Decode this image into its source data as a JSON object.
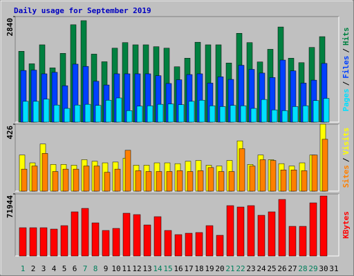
{
  "title": "Daily usage for September 2019",
  "label_separator": "/",
  "categories": [
    "1",
    "2",
    "3",
    "4",
    "5",
    "6",
    "7",
    "8",
    "9",
    "10",
    "11",
    "12",
    "13",
    "14",
    "15",
    "16",
    "17",
    "18",
    "19",
    "20",
    "21",
    "22",
    "23",
    "24",
    "25",
    "26",
    "27",
    "28",
    "29",
    "30",
    "31"
  ],
  "label_colors": [
    "#00805c",
    "#000000",
    "#000000",
    "#000000",
    "#000000",
    "#000000",
    "#00805c",
    "#00805c",
    "#000000",
    "#000000",
    "#000000",
    "#000000",
    "#000000",
    "#00805c",
    "#00805c",
    "#000000",
    "#000000",
    "#000000",
    "#000000",
    "#000000",
    "#00805c",
    "#00805c",
    "#000000",
    "#000000",
    "#000000",
    "#000000",
    "#000000",
    "#00805c",
    "#00805c",
    "#000000",
    "#000000"
  ],
  "chart_data": [
    {
      "type": "bar",
      "ylim": [
        0,
        2840
      ],
      "yticks": [
        2840
      ],
      "series": [
        {
          "name": "Hits",
          "color": "#008040",
          "values": [
            1906,
            1570,
            2080,
            1460,
            1850,
            2620,
            2730,
            1830,
            1625,
            1990,
            2140,
            2080,
            2080,
            2030,
            1990,
            1490,
            1720,
            2150,
            2080,
            2080,
            1590,
            2390,
            2140,
            1620,
            1960,
            2560,
            1720,
            1600,
            2010,
            2300,
            null
          ]
        },
        {
          "name": "Files",
          "color": "#0040ff",
          "values": [
            1390,
            1400,
            1300,
            1340,
            980,
            1560,
            1500,
            1100,
            1000,
            1300,
            1300,
            1300,
            1300,
            1250,
            1040,
            1140,
            1280,
            1300,
            1050,
            1220,
            1150,
            1530,
            1420,
            1320,
            1200,
            1670,
            1380,
            1050,
            1130,
            1580,
            null
          ]
        },
        {
          "name": "Pages",
          "color": "#00e0ff",
          "values": [
            560,
            560,
            620,
            460,
            370,
            460,
            480,
            450,
            590,
            650,
            310,
            430,
            440,
            480,
            490,
            470,
            560,
            590,
            440,
            420,
            450,
            440,
            370,
            610,
            330,
            310,
            420,
            440,
            580,
            640,
            null
          ]
        }
      ]
    },
    {
      "type": "bar",
      "ylim": [
        0,
        426
      ],
      "yticks": [
        426
      ],
      "series": [
        {
          "name": "Visits",
          "color": "#ffff00",
          "values": [
            230,
            180,
            300,
            170,
            170,
            165,
            200,
            190,
            180,
            185,
            210,
            165,
            165,
            180,
            180,
            175,
            190,
            195,
            165,
            160,
            195,
            320,
            170,
            230,
            200,
            175,
            160,
            180,
            230,
            426,
            null
          ]
        },
        {
          "name": "Sites",
          "color": "#ff8000",
          "values": [
            140,
            160,
            240,
            125,
            140,
            140,
            160,
            160,
            120,
            140,
            260,
            130,
            125,
            125,
            125,
            130,
            125,
            130,
            150,
            125,
            125,
            270,
            160,
            200,
            195,
            135,
            135,
            130,
            230,
            330,
            null
          ]
        }
      ]
    },
    {
      "type": "bar",
      "ylim": [
        0,
        71944
      ],
      "yticks": [
        71944
      ],
      "series": [
        {
          "name": "KBytes",
          "color": "#ff0000",
          "values": [
            32775,
            32775,
            32775,
            31175,
            35172,
            51160,
            55157,
            38370,
            29577,
            31975,
            49561,
            47963,
            35971,
            45564,
            29577,
            24781,
            26380,
            27179,
            35172,
            23981,
            58354,
            56755,
            58354,
            47163,
            51160,
            65549,
            34373,
            34373,
            61552,
            69545,
            null
          ]
        }
      ]
    }
  ]
}
